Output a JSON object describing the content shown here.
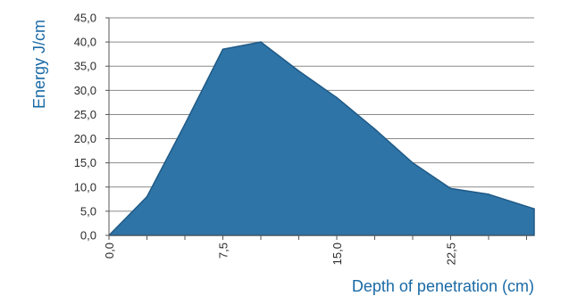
{
  "chart_data": {
    "type": "area",
    "xlabel": "Depth of penetration (cm)",
    "ylabel": "Energy  J/cm",
    "xlim": [
      0,
      28
    ],
    "ylim": [
      0,
      45
    ],
    "x_ticks": [
      0,
      7.5,
      15,
      22.5
    ],
    "x_tick_labels": [
      "0,0",
      "7,5",
      "15,0",
      "22,5"
    ],
    "y_ticks": [
      0,
      5,
      10,
      15,
      20,
      25,
      30,
      35,
      40,
      45
    ],
    "y_tick_labels": [
      "0,0",
      "5,0",
      "10,0",
      "15,0",
      "20,0",
      "25,0",
      "30,0",
      "35,0",
      "40,0",
      "45,0"
    ],
    "grid": true,
    "colors": {
      "fill": "#2e74a6",
      "stroke": "#1f5a87",
      "text_accent": "#1a6aa6"
    },
    "series": [
      {
        "x": [
          0,
          2.5,
          5,
          7.5,
          10,
          12.5,
          15,
          17.5,
          20,
          22.5,
          25,
          28
        ],
        "values": [
          0,
          8,
          23,
          38.5,
          40,
          34,
          28.5,
          22,
          15,
          9.7,
          8.5,
          5.5
        ]
      }
    ]
  }
}
